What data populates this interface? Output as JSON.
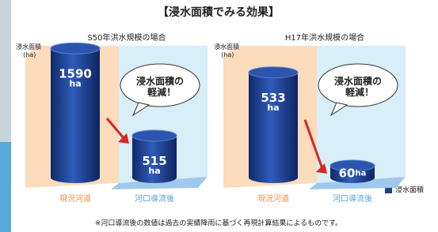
{
  "title": "【浸水面積でみる効果】",
  "legend": "浸水面積",
  "note": "※河口導流後の数値は過去の実績降雨に基づく再現計算結果によるものです。",
  "chart_data": [
    {
      "type": "cylinder",
      "title": "S50年洪水規模の場合",
      "y_label": "浸水面積\n(ha)",
      "categories": [
        "現況河道",
        "河口導流後"
      ],
      "values": [
        1590,
        515
      ],
      "value_labels": [
        "1590ha",
        "515ha"
      ],
      "color": "#1f3f8f",
      "ylim": [
        0,
        1700
      ],
      "annotation": "浸水面積の\n軽減！"
    },
    {
      "type": "cylinder",
      "title": "H17年洪水規模の場合",
      "y_label": "浸水面積\n(ha)",
      "categories": [
        "現況河道",
        "河口導流後"
      ],
      "values": [
        533,
        60
      ],
      "value_labels": [
        "533ha",
        "60ha"
      ],
      "color": "#1f3f8f",
      "ylim": [
        0,
        700
      ],
      "annotation": "浸水面積の\n軽減！"
    }
  ]
}
